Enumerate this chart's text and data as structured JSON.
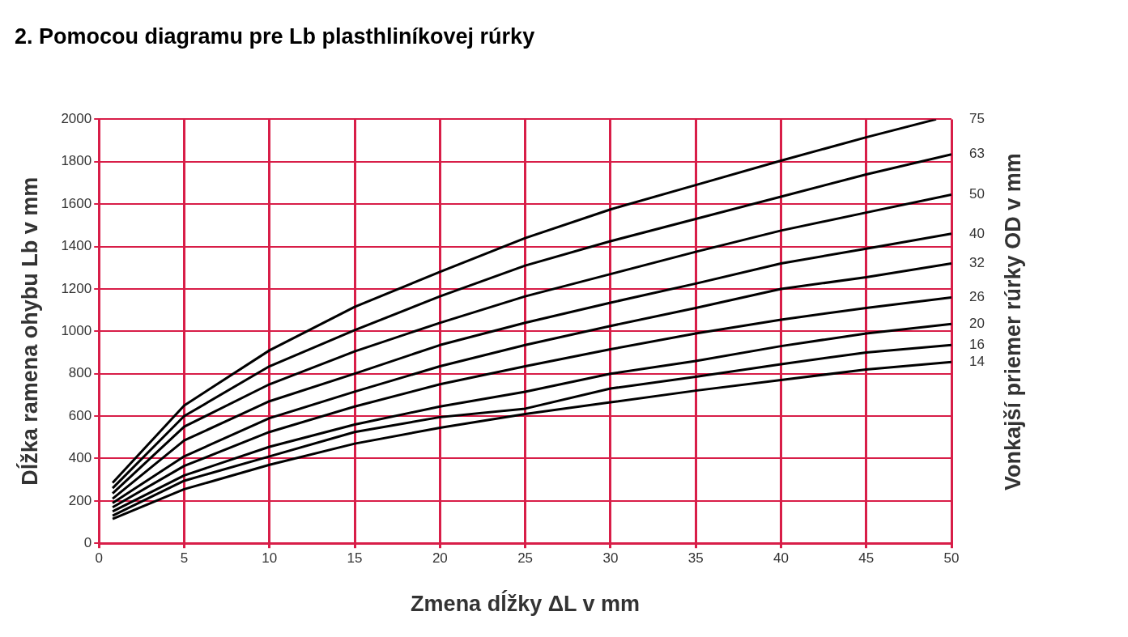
{
  "chart_data": {
    "type": "line",
    "title": "2. Pomocou diagramu pre Lb plasthliníkovej rúrky",
    "xlabel": "Zmena dĺžky ΔL v mm",
    "ylabel": "Dĺžka ramena ohybu Lb v mm",
    "y2label": "Vonkajší priemer rúrky OD v mm",
    "x": [
      0.8,
      5,
      10,
      15,
      20,
      25,
      30,
      35,
      40,
      45,
      50
    ],
    "series": [
      {
        "name": "75",
        "color": "#000000",
        "x": [
          0.8,
          5,
          10,
          15,
          20,
          25,
          30,
          35,
          40,
          45,
          49.1
        ],
        "values": [
          285,
          650,
          910,
          1115,
          1280,
          1440,
          1575,
          1690,
          1805,
          1915,
          2000
        ]
      },
      {
        "name": "63",
        "color": "#000000",
        "values": [
          260,
          600,
          835,
          1005,
          1165,
          1310,
          1425,
          1530,
          1635,
          1740,
          1835
        ]
      },
      {
        "name": "50",
        "color": "#000000",
        "values": [
          235,
          550,
          750,
          905,
          1040,
          1165,
          1270,
          1375,
          1475,
          1560,
          1645
        ]
      },
      {
        "name": "40",
        "color": "#000000",
        "values": [
          210,
          485,
          670,
          800,
          935,
          1040,
          1135,
          1225,
          1320,
          1390,
          1460
        ]
      },
      {
        "name": "32",
        "color": "#000000",
        "values": [
          190,
          410,
          590,
          715,
          835,
          935,
          1025,
          1110,
          1200,
          1255,
          1320
        ]
      },
      {
        "name": "26",
        "color": "#000000",
        "values": [
          170,
          365,
          525,
          645,
          750,
          835,
          915,
          990,
          1055,
          1110,
          1160
        ]
      },
      {
        "name": "20",
        "color": "#000000",
        "values": [
          150,
          320,
          455,
          560,
          645,
          715,
          800,
          860,
          930,
          990,
          1035
        ]
      },
      {
        "name": "16",
        "color": "#000000",
        "values": [
          130,
          295,
          410,
          525,
          595,
          635,
          730,
          785,
          845,
          900,
          935
        ]
      },
      {
        "name": "14",
        "color": "#000000",
        "values": [
          115,
          255,
          370,
          470,
          545,
          610,
          665,
          720,
          770,
          820,
          855
        ]
      }
    ],
    "xlim": [
      0,
      50
    ],
    "xticks": [
      0,
      5,
      10,
      15,
      20,
      25,
      30,
      35,
      40,
      45,
      50
    ],
    "ylim": [
      0,
      2000
    ],
    "yticks": [
      0,
      200,
      400,
      600,
      800,
      1000,
      1200,
      1400,
      1600,
      1800,
      2000
    ],
    "grid": true,
    "marker": "none",
    "line_style": "solid",
    "legend": false
  }
}
